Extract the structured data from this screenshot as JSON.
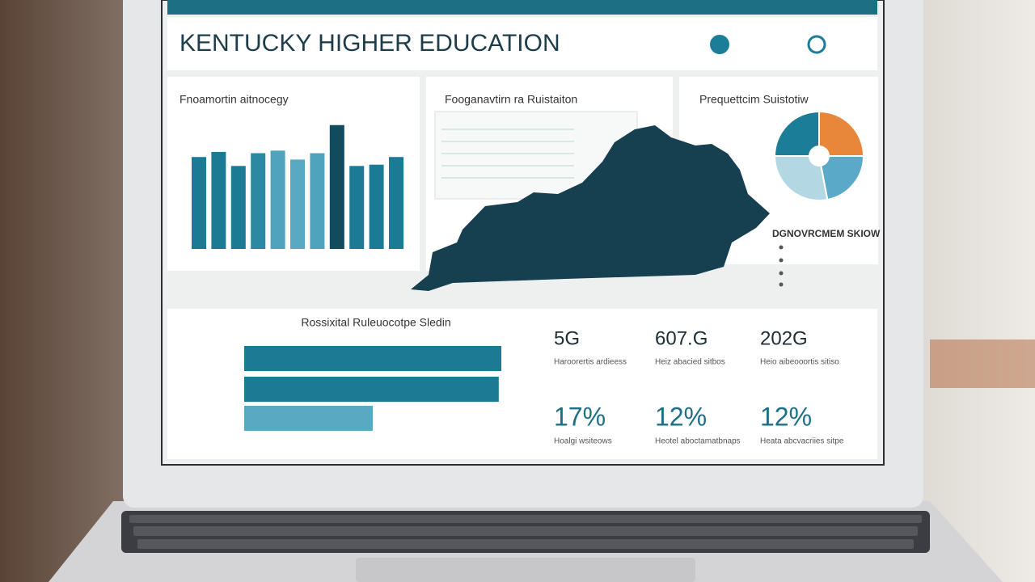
{
  "header": {
    "title": "KENTUCKY HIGHER EDUCATION"
  },
  "panels": [
    {
      "title": "Fnoamortin aitnocegy"
    },
    {
      "title": "Fooganavtirn ra Ruistaiton"
    },
    {
      "title": "Prequettcim Suistotiw",
      "subtitle": "DGNOVRCMEM SKIOW"
    }
  ],
  "bar_chart": {
    "type": "bar",
    "values": [
      72,
      76,
      65,
      75,
      77,
      70,
      75,
      97,
      65,
      66,
      72
    ],
    "colors": [
      "#1b7b94",
      "#1b7b94",
      "#1b7b94",
      "#2a8aa3",
      "#4fa3bd",
      "#5aa9c2",
      "#4fa3bd",
      "#124a5e",
      "#1b7b94",
      "#1b7b94",
      "#1b7b94"
    ],
    "ylim": [
      0,
      100
    ]
  },
  "pie_chart": {
    "type": "pie",
    "values": [
      25,
      22,
      28,
      25
    ],
    "colors": [
      "#e8873a",
      "#5aa9c8",
      "#b3d8e4",
      "#1c7d98"
    ]
  },
  "hbar_chart": {
    "type": "bar",
    "title": "Rossixital Ruleuocotpe Sledin",
    "values": [
      100,
      99,
      50
    ],
    "colors": [
      "#1b7b94",
      "#1b7b94",
      "#5aa9c2"
    ],
    "xlim": [
      0,
      100
    ]
  },
  "stats": [
    {
      "value": "5G",
      "caption": "Haroorertis ardieess"
    },
    {
      "value": "607.G",
      "caption": "Heiz abacied sitbos"
    },
    {
      "value": "202G",
      "caption": "Heio aibeooortis sitiso"
    },
    {
      "value": "17%",
      "caption": "Hoalgi wsiteows"
    },
    {
      "value": "12%",
      "caption": "Heotel aboctamatbnaps"
    },
    {
      "value": "12%",
      "caption": "Heata abcvacriies sitpe"
    }
  ]
}
